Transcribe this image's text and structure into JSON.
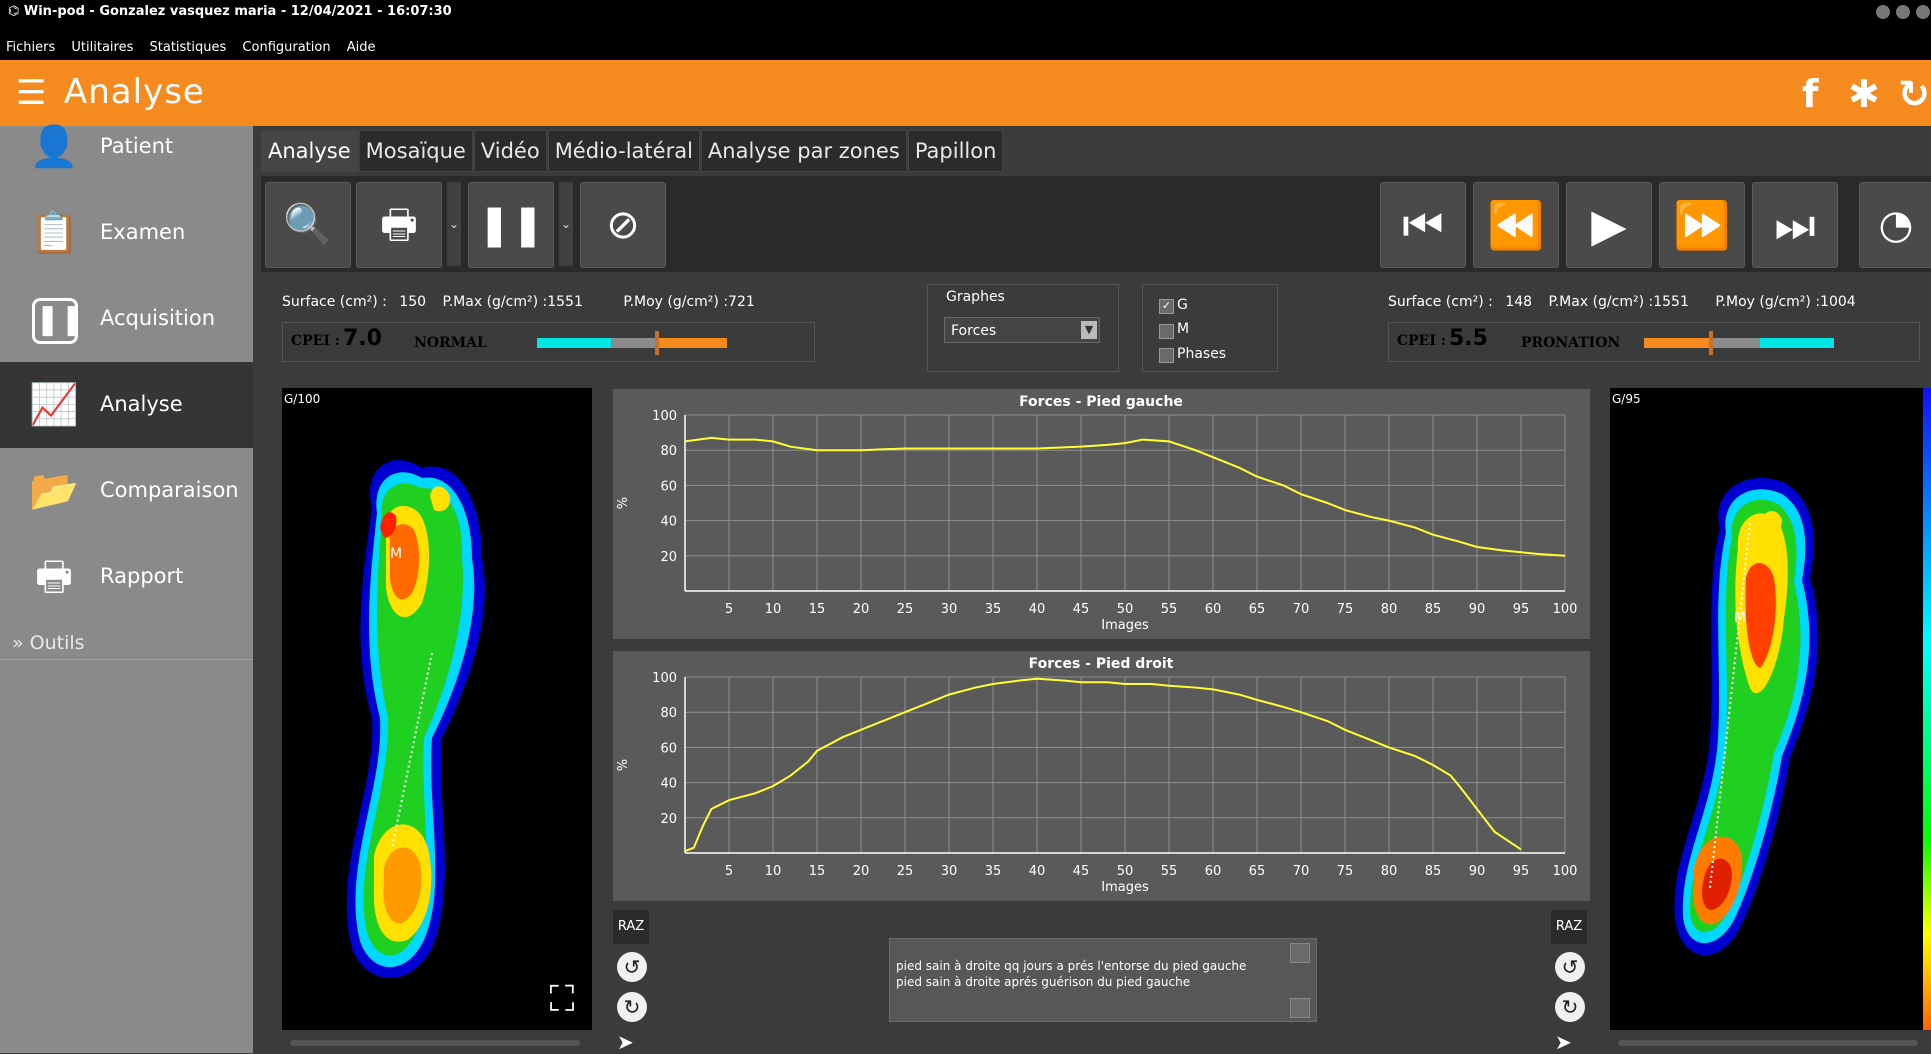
{
  "window": {
    "title": "Win-pod -  Gonzalez vasquez maria - 12/04/2021 - 16:07:30"
  },
  "menu": [
    "Fichiers",
    "Utilitaires",
    "Statistiques",
    "Configuration",
    "Aide"
  ],
  "header": {
    "title": "Analyse",
    "icons": [
      "facebook-icon",
      "gear-icon",
      "refresh-icon"
    ]
  },
  "sidebar": {
    "items": [
      {
        "label": "Patient",
        "icon": "person-icon"
      },
      {
        "label": "Examen",
        "icon": "clipboard-icon"
      },
      {
        "label": "Acquisition",
        "icon": "feet-scan-icon"
      },
      {
        "label": "Analyse",
        "icon": "chart-icon",
        "active": true
      },
      {
        "label": "Comparaison",
        "icon": "folder-open-icon"
      },
      {
        "label": "Rapport",
        "icon": "printer-icon"
      }
    ],
    "tools_label": "Outils"
  },
  "tabs": [
    {
      "label": "Analyse",
      "active": true
    },
    {
      "label": "Mosaïque"
    },
    {
      "label": "Vidéo"
    },
    {
      "label": "Médio-latéral"
    },
    {
      "label": "Analyse par zones"
    },
    {
      "label": "Papillon"
    }
  ],
  "left_stats": {
    "surface_label": "Surface (cm²) :",
    "surface": "150",
    "pmax_label": "P.Max (g/cm²) :",
    "pmax": "1551",
    "pmoy_label": "P.Moy (g/cm²) :",
    "pmoy": "721",
    "cpei_label": "CPEI :",
    "cpei": "7.0",
    "state": "NORMAL"
  },
  "right_stats": {
    "surface_label": "Surface (cm²) :",
    "surface": "148",
    "pmax_label": "P.Max (g/cm²) :",
    "pmax": "1551",
    "pmoy_label": "P.Moy (g/cm²) :",
    "pmoy": "1004",
    "cpei_label": "CPEI :",
    "cpei": "5.5",
    "state": "PRONATION"
  },
  "graphes": {
    "label": "Graphes",
    "selected": "Forces"
  },
  "checks": [
    {
      "label": "G",
      "checked": true
    },
    {
      "label": "M",
      "checked": false
    },
    {
      "label": "Phases",
      "checked": false
    }
  ],
  "left_foot": {
    "label": "G/100",
    "marker": "M"
  },
  "right_foot": {
    "label": "G/95",
    "marker": "M"
  },
  "raz_label": "RAZ",
  "notes": {
    "line1": "pied sain  à droite qq jours a prés l'entorse du pied gauche",
    "line2": "pied sain à droite aprés guérison du pied gauche"
  },
  "colors": {
    "orange": "#f58a1f",
    "cyan": "#00e5e5",
    "line": "#ffff33"
  },
  "chart_data": [
    {
      "type": "line",
      "title": "Forces - Pied gauche",
      "xlabel": "Images",
      "ylabel": "%",
      "ylim": [
        0,
        100
      ],
      "xlim": [
        0,
        100
      ],
      "xticks": [
        5,
        10,
        15,
        20,
        25,
        30,
        35,
        40,
        45,
        50,
        55,
        60,
        65,
        70,
        75,
        80,
        85,
        90,
        95,
        100
      ],
      "yticks": [
        20,
        40,
        60,
        80,
        100
      ],
      "x": [
        0,
        3,
        5,
        8,
        10,
        12,
        15,
        18,
        20,
        25,
        30,
        35,
        40,
        45,
        48,
        50,
        52,
        55,
        58,
        60,
        63,
        65,
        68,
        70,
        73,
        75,
        78,
        80,
        83,
        85,
        88,
        90,
        93,
        95,
        97,
        100
      ],
      "values": [
        85,
        87,
        86,
        86,
        85,
        82,
        80,
        80,
        80,
        81,
        81,
        81,
        81,
        82,
        83,
        84,
        86,
        85,
        80,
        76,
        70,
        65,
        60,
        55,
        50,
        46,
        42,
        40,
        36,
        32,
        28,
        25,
        23,
        22,
        21,
        20
      ]
    },
    {
      "type": "line",
      "title": "Forces - Pied droit",
      "xlabel": "Images",
      "ylabel": "%",
      "ylim": [
        0,
        100
      ],
      "xlim": [
        0,
        100
      ],
      "xticks": [
        5,
        10,
        15,
        20,
        25,
        30,
        35,
        40,
        45,
        50,
        55,
        60,
        65,
        70,
        75,
        80,
        85,
        90,
        95,
        100
      ],
      "yticks": [
        20,
        40,
        60,
        80,
        100
      ],
      "x": [
        0,
        1,
        2,
        3,
        5,
        8,
        10,
        12,
        14,
        15,
        18,
        20,
        23,
        25,
        28,
        30,
        33,
        35,
        38,
        40,
        43,
        45,
        48,
        50,
        53,
        55,
        58,
        60,
        63,
        65,
        68,
        70,
        73,
        75,
        78,
        80,
        83,
        85,
        87,
        88,
        90,
        92,
        95
      ],
      "values": [
        1,
        3,
        15,
        25,
        30,
        34,
        38,
        44,
        52,
        58,
        66,
        70,
        76,
        80,
        86,
        90,
        94,
        96,
        98,
        99,
        98,
        97,
        97,
        96,
        96,
        95,
        94,
        93,
        90,
        87,
        83,
        80,
        75,
        70,
        64,
        60,
        55,
        50,
        44,
        38,
        25,
        12,
        2
      ]
    }
  ]
}
